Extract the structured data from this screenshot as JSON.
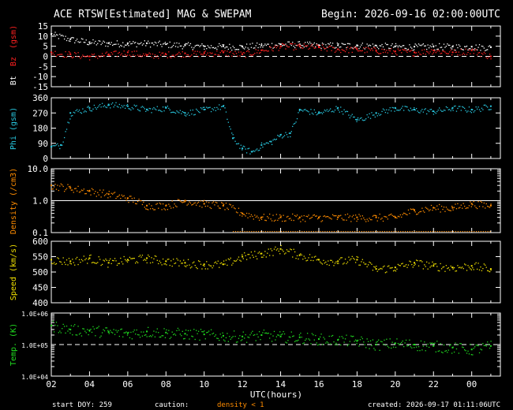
{
  "header": {
    "title": "ACE RTSW[Estimated] MAG & SWEPAM",
    "begin": "Begin: 2026-09-16 02:00:00UTC"
  },
  "footer": {
    "start_doy": "start DOY: 259",
    "caution_label": "caution:",
    "caution_text": "density < 1",
    "created": "created: 2026-09-17 01:11:06UTC"
  },
  "x_axis": {
    "label": "UTC(hours)",
    "ticks": [
      "02",
      "04",
      "06",
      "08",
      "10",
      "12",
      "14",
      "16",
      "18",
      "20",
      "22",
      "00"
    ],
    "range_hours": [
      2,
      25.5
    ]
  },
  "colors": {
    "background": "#000000",
    "frame": "#ffffff",
    "bt": "#ffffff",
    "bz": "#ff2020",
    "phi": "#28c8e0",
    "density": "#ff8c00",
    "speed": "#f0e000",
    "temp": "#20dd20",
    "caution": "#ff8c00"
  },
  "chart_data": [
    {
      "type": "line",
      "panel": "mag",
      "ylabel_parts": [
        "Bt",
        "Bz",
        "(gsm)"
      ],
      "yticks": [
        "15",
        "10",
        "5",
        "0",
        "-5",
        "-10",
        "-15"
      ],
      "ylim": [
        -15,
        15
      ],
      "reference_line": 0,
      "series": [
        {
          "name": "Bt",
          "x": [
            2,
            3,
            4,
            5,
            6,
            7,
            8,
            9,
            10,
            11,
            12,
            13,
            14,
            15,
            16,
            17,
            18,
            19,
            20,
            21,
            22,
            23,
            24,
            25
          ],
          "values": [
            11,
            8.5,
            7,
            6.5,
            6.5,
            6.5,
            6,
            5.5,
            5,
            5,
            4.8,
            5.5,
            6,
            6,
            5.5,
            5.5,
            5.5,
            5.3,
            5,
            4.8,
            5,
            4.8,
            4.8,
            4.5
          ]
        },
        {
          "name": "Bz",
          "x": [
            2,
            3,
            4,
            5,
            6,
            7,
            8,
            9,
            10,
            11,
            12,
            13,
            14,
            15,
            16,
            17,
            18,
            19,
            20,
            21,
            22,
            23,
            24,
            25
          ],
          "values": [
            2,
            1,
            0,
            1,
            2,
            0.5,
            1,
            1.5,
            1.5,
            2,
            1,
            3,
            5,
            5,
            4.5,
            3.5,
            3.5,
            3,
            2.5,
            2,
            3,
            2,
            3,
            0
          ]
        }
      ]
    },
    {
      "type": "scatter",
      "panel": "phi",
      "ylabel": "Phi (gsm)",
      "yticks": [
        "360",
        "270",
        "180",
        "90",
        "0"
      ],
      "ylim": [
        0,
        360
      ],
      "series": [
        {
          "name": "Phi",
          "x": [
            2,
            2.5,
            3,
            4,
            5,
            6,
            7,
            8,
            9,
            10,
            11,
            11.5,
            12,
            12.5,
            13,
            13.5,
            14,
            14.5,
            15,
            16,
            17,
            18,
            19,
            20,
            21,
            22,
            23,
            24,
            25
          ],
          "values": [
            70,
            80,
            270,
            300,
            320,
            310,
            290,
            300,
            270,
            290,
            310,
            120,
            60,
            40,
            80,
            100,
            140,
            150,
            290,
            270,
            300,
            230,
            270,
            300,
            290,
            280,
            300,
            290,
            310
          ]
        }
      ]
    },
    {
      "type": "scatter",
      "panel": "density",
      "ylabel": "Density (/cm3)",
      "yticks": [
        "10.0",
        "1.0",
        "0.1"
      ],
      "ylim": [
        0.1,
        10
      ],
      "log_scale": true,
      "reference_line": 1.0,
      "series": [
        {
          "name": "Density",
          "x": [
            2,
            3,
            4,
            5,
            6,
            7,
            8,
            9,
            10,
            11,
            12,
            13,
            14,
            15,
            16,
            17,
            18,
            19,
            20,
            21,
            22,
            23,
            24,
            25
          ],
          "values": [
            3,
            2.5,
            2,
            1.6,
            1.2,
            0.7,
            0.7,
            1,
            0.8,
            0.7,
            0.4,
            0.3,
            0.3,
            0.3,
            0.3,
            0.3,
            0.3,
            0.3,
            0.3,
            0.5,
            0.6,
            0.6,
            0.8,
            0.7
          ]
        }
      ]
    },
    {
      "type": "scatter",
      "panel": "speed",
      "ylabel": "Speed (km/s)",
      "yticks": [
        "600",
        "550",
        "500",
        "450",
        "400"
      ],
      "ylim": [
        400,
        600
      ],
      "series": [
        {
          "name": "Speed",
          "x": [
            2,
            3,
            4,
            5,
            6,
            7,
            8,
            9,
            10,
            11,
            12,
            13,
            14,
            15,
            16,
            17,
            18,
            19,
            20,
            21,
            22,
            23,
            24,
            25
          ],
          "values": [
            540,
            535,
            545,
            530,
            540,
            545,
            535,
            530,
            525,
            525,
            550,
            560,
            575,
            555,
            540,
            535,
            540,
            510,
            515,
            530,
            520,
            515,
            520,
            510
          ]
        }
      ]
    },
    {
      "type": "scatter",
      "panel": "temp",
      "ylabel": "Temp. (K)",
      "yticks": [
        "1.0E+06",
        "1.0E+05",
        "1.0E+04"
      ],
      "ylim": [
        10000,
        1000000
      ],
      "log_scale": true,
      "reference_line": 100000,
      "series": [
        {
          "name": "Temp",
          "x": [
            2,
            3,
            4,
            5,
            6,
            7,
            8,
            9,
            10,
            11,
            12,
            13,
            14,
            15,
            16,
            17,
            18,
            19,
            20,
            21,
            22,
            23,
            24,
            25
          ],
          "values": [
            400000,
            300000,
            280000,
            250000,
            230000,
            260000,
            240000,
            220000,
            210000,
            190000,
            180000,
            200000,
            180000,
            170000,
            150000,
            140000,
            130000,
            100000,
            110000,
            100000,
            90000,
            80000,
            70000,
            90000
          ]
        }
      ]
    }
  ]
}
